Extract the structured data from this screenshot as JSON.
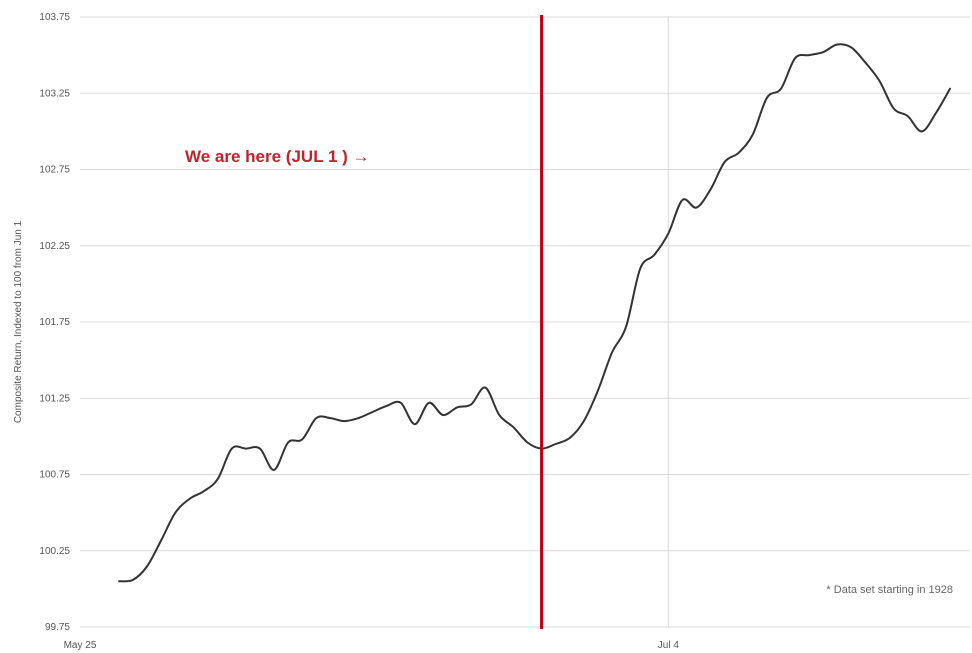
{
  "chart_data": {
    "type": "line",
    "title": "",
    "xlabel": "",
    "ylabel": "Composite Return, Indexed to 100 from Jun 1",
    "ylim": [
      99.75,
      103.75
    ],
    "yticks": [
      "99.75",
      "100.25",
      "100.75",
      "101.25",
      "101.75",
      "102.25",
      "102.75",
      "103.25",
      "103.75"
    ],
    "xlim": [
      "May 25",
      "Jul 24"
    ],
    "xticks": [
      {
        "label": "May 25",
        "x": "May 25"
      },
      {
        "label": "Jul 4",
        "x": "Jul 4"
      }
    ],
    "grid": true,
    "series": [
      {
        "color": "#333333",
        "points": [
          [
            "May 26",
            100.05
          ],
          [
            "May 27",
            100.06
          ],
          [
            "May 28",
            100.15
          ],
          [
            "May 29",
            100.32
          ],
          [
            "May 30",
            100.5
          ],
          [
            "May 31",
            100.59
          ],
          [
            "Jun 1",
            100.64
          ],
          [
            "Jun 2",
            100.72
          ],
          [
            "Jun 3",
            100.92
          ],
          [
            "Jun 4",
            100.92
          ],
          [
            "Jun 5",
            100.92
          ],
          [
            "Jun 6",
            100.78
          ],
          [
            "Jun 7",
            100.96
          ],
          [
            "Jun 8",
            100.98
          ],
          [
            "Jun 9",
            101.12
          ],
          [
            "Jun 10",
            101.12
          ],
          [
            "Jun 11",
            101.1
          ],
          [
            "Jun 12",
            101.12
          ],
          [
            "Jun 13",
            101.16
          ],
          [
            "Jun 14",
            101.2
          ],
          [
            "Jun 15",
            101.22
          ],
          [
            "Jun 16",
            101.08
          ],
          [
            "Jun 17",
            101.22
          ],
          [
            "Jun 18",
            101.14
          ],
          [
            "Jun 19",
            101.19
          ],
          [
            "Jun 20",
            101.21
          ],
          [
            "Jun 21",
            101.32
          ],
          [
            "Jun 22",
            101.14
          ],
          [
            "Jun 23",
            101.06
          ],
          [
            "Jun 24",
            100.96
          ],
          [
            "Jun 25",
            100.92
          ],
          [
            "Jun 26",
            100.95
          ],
          [
            "Jun 27",
            100.99
          ],
          [
            "Jun 28",
            101.1
          ],
          [
            "Jun 29",
            101.3
          ],
          [
            "Jun 30",
            101.55
          ],
          [
            "Jul 1",
            101.72
          ],
          [
            "Jul 2",
            102.1
          ],
          [
            "Jul 3",
            102.19
          ],
          [
            "Jul 4",
            102.33
          ],
          [
            "Jul 5",
            102.55
          ],
          [
            "Jul 6",
            102.5
          ],
          [
            "Jul 7",
            102.62
          ],
          [
            "Jul 8",
            102.8
          ],
          [
            "Jul 9",
            102.86
          ],
          [
            "Jul 10",
            102.98
          ],
          [
            "Jul 11",
            103.22
          ],
          [
            "Jul 12",
            103.28
          ],
          [
            "Jul 13",
            103.48
          ],
          [
            "Jul 14",
            103.5
          ],
          [
            "Jul 15",
            103.52
          ],
          [
            "Jul 16",
            103.57
          ],
          [
            "Jul 17",
            103.55
          ],
          [
            "Jul 18",
            103.45
          ],
          [
            "Jul 19",
            103.33
          ],
          [
            "Jul 20",
            103.15
          ],
          [
            "Jul 21",
            103.1
          ],
          [
            "Jul 22",
            103.0
          ],
          [
            "Jul 23",
            103.12
          ],
          [
            "Jul 24",
            103.28
          ]
        ]
      }
    ],
    "marker_line": {
      "x": "Jun 25",
      "color": "#c00000"
    },
    "annotation": {
      "text": "We are here (JUL 1 ) →",
      "color": "#c0242b"
    },
    "note": "* Data set starting in 1928"
  }
}
